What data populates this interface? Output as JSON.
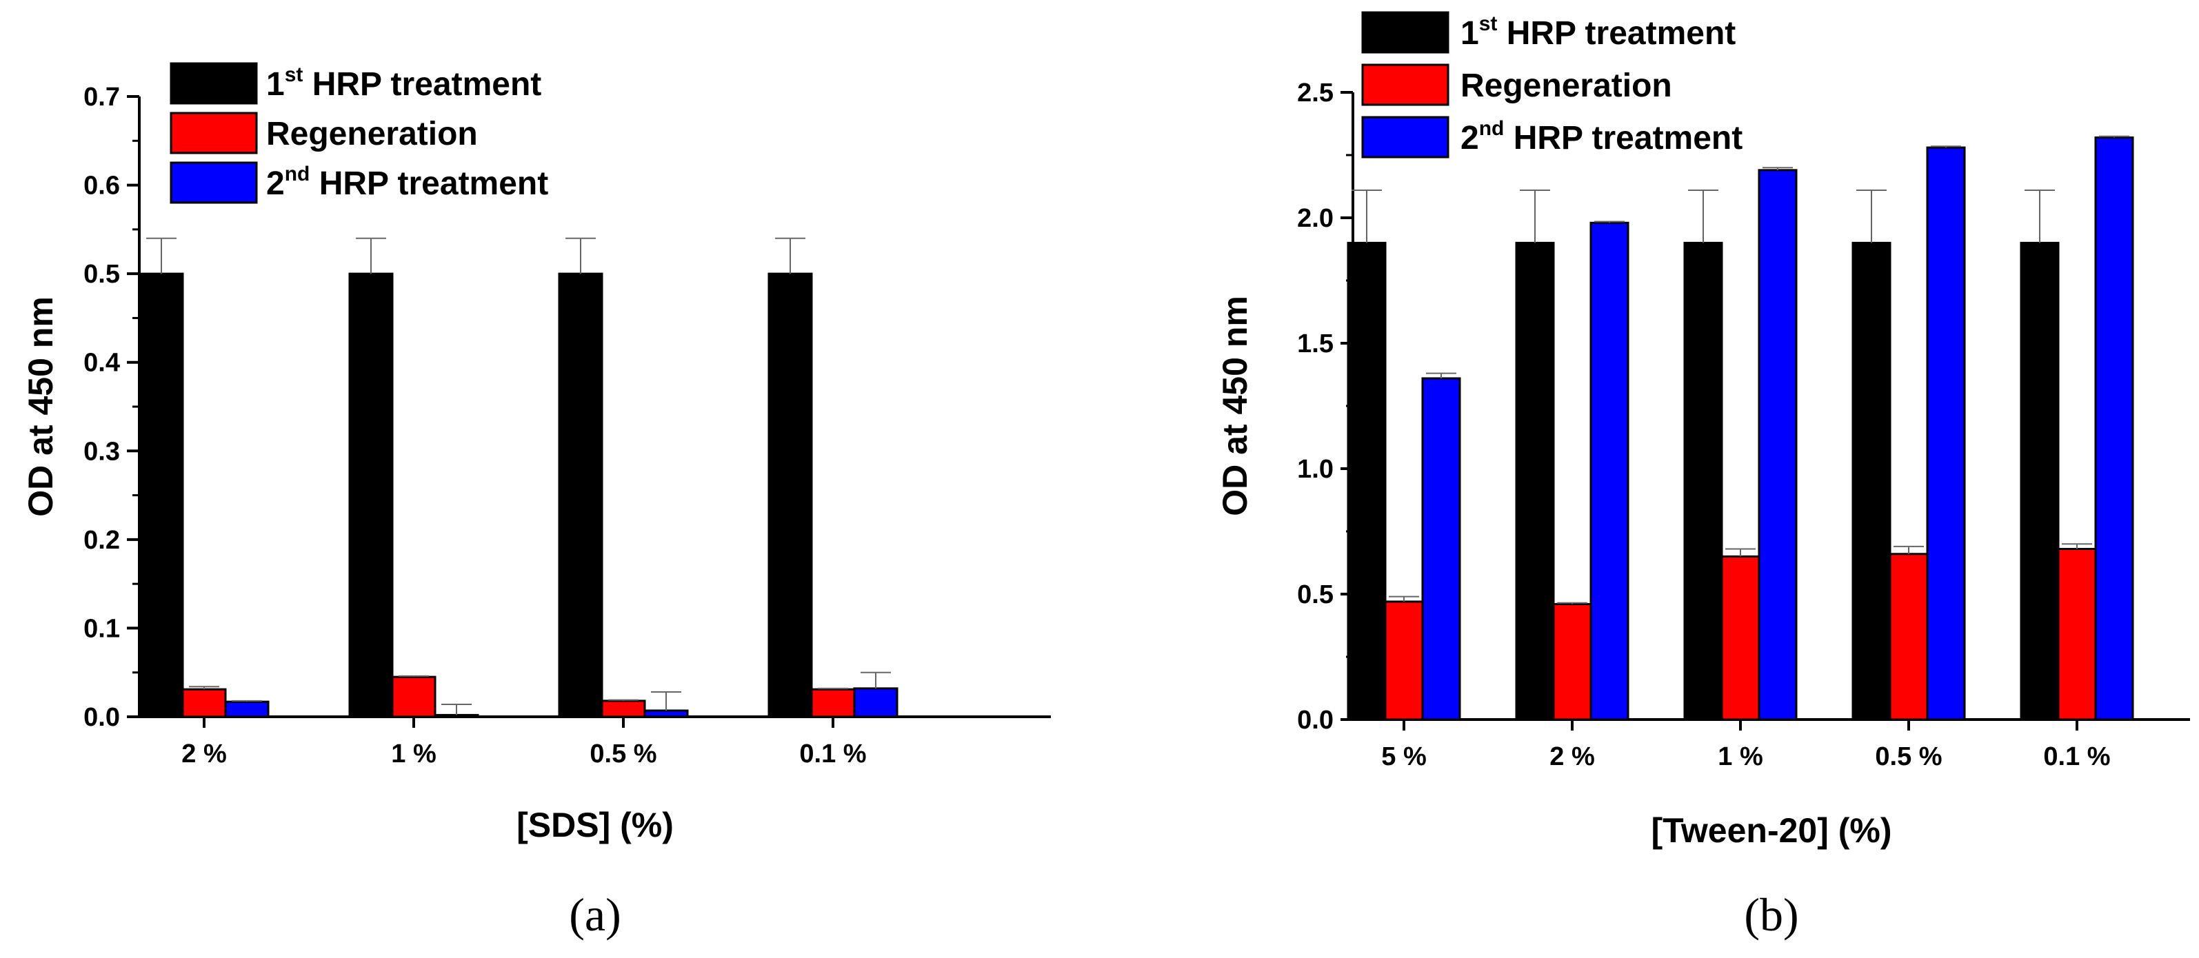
{
  "colors": {
    "first": "#000000",
    "regen": "#ff0000",
    "second": "#0000ff"
  },
  "chart_data": [
    {
      "type": "bar",
      "panel_label": "(a)",
      "xlabel": "[SDS] (%)",
      "ylabel": "OD at 450 nm",
      "ylim": [
        0,
        0.7
      ],
      "yticks": [
        "0.0",
        "0.1",
        "0.2",
        "0.3",
        "0.4",
        "0.5",
        "0.6",
        "0.7"
      ],
      "categories": [
        "2 %",
        "1 %",
        "0.5 %",
        "0.1 %"
      ],
      "legend_position": "top-left",
      "series": [
        {
          "name": "1st HRP treatment",
          "legend_main": "1",
          "legend_sup": "st",
          "legend_rest": " HRP treatment",
          "values": [
            0.5,
            0.5,
            0.5,
            0.5
          ],
          "errors": [
            0.04,
            0.04,
            0.04,
            0.04
          ]
        },
        {
          "name": "Regeneration",
          "legend_main": "Regeneration",
          "legend_sup": "",
          "legend_rest": "",
          "values": [
            0.031,
            0.045,
            0.018,
            0.031
          ],
          "errors": [
            0.003,
            0.001,
            0.001,
            0.001
          ]
        },
        {
          "name": "2nd HRP treatment",
          "legend_main": "2",
          "legend_sup": "nd",
          "legend_rest": " HRP treatment",
          "values": [
            0.017,
            0.002,
            0.007,
            0.032
          ],
          "errors": [
            0.001,
            0.012,
            0.021,
            0.018
          ]
        }
      ]
    },
    {
      "type": "bar",
      "panel_label": "(b)",
      "xlabel": "[Tween-20] (%)",
      "ylabel": "OD at 450 nm",
      "ylim": [
        0,
        2.5
      ],
      "yticks": [
        "0.0",
        "0.5",
        "1.0",
        "1.5",
        "2.0",
        "2.5"
      ],
      "categories": [
        "5 %",
        "2 %",
        "1 %",
        "0.5 %",
        "0.1 %"
      ],
      "legend_position": "top-left",
      "series": [
        {
          "name": "1st HRP treatment",
          "legend_main": "1",
          "legend_sup": "st",
          "legend_rest": " HRP treatment",
          "values": [
            1.9,
            1.9,
            1.9,
            1.9,
            1.9
          ],
          "errors": [
            0.21,
            0.21,
            0.21,
            0.21,
            0.21
          ]
        },
        {
          "name": "Regeneration",
          "legend_main": "Regeneration",
          "legend_sup": "",
          "legend_rest": "",
          "values": [
            0.47,
            0.46,
            0.65,
            0.66,
            0.68
          ],
          "errors": [
            0.02,
            0.005,
            0.03,
            0.03,
            0.02
          ]
        },
        {
          "name": "2nd HRP treatment",
          "legend_main": "2",
          "legend_sup": "nd",
          "legend_rest": " HRP treatment",
          "values": [
            1.36,
            1.98,
            2.19,
            2.28,
            2.32
          ],
          "errors": [
            0.02,
            0.005,
            0.01,
            0.005,
            0.005
          ]
        }
      ]
    }
  ]
}
